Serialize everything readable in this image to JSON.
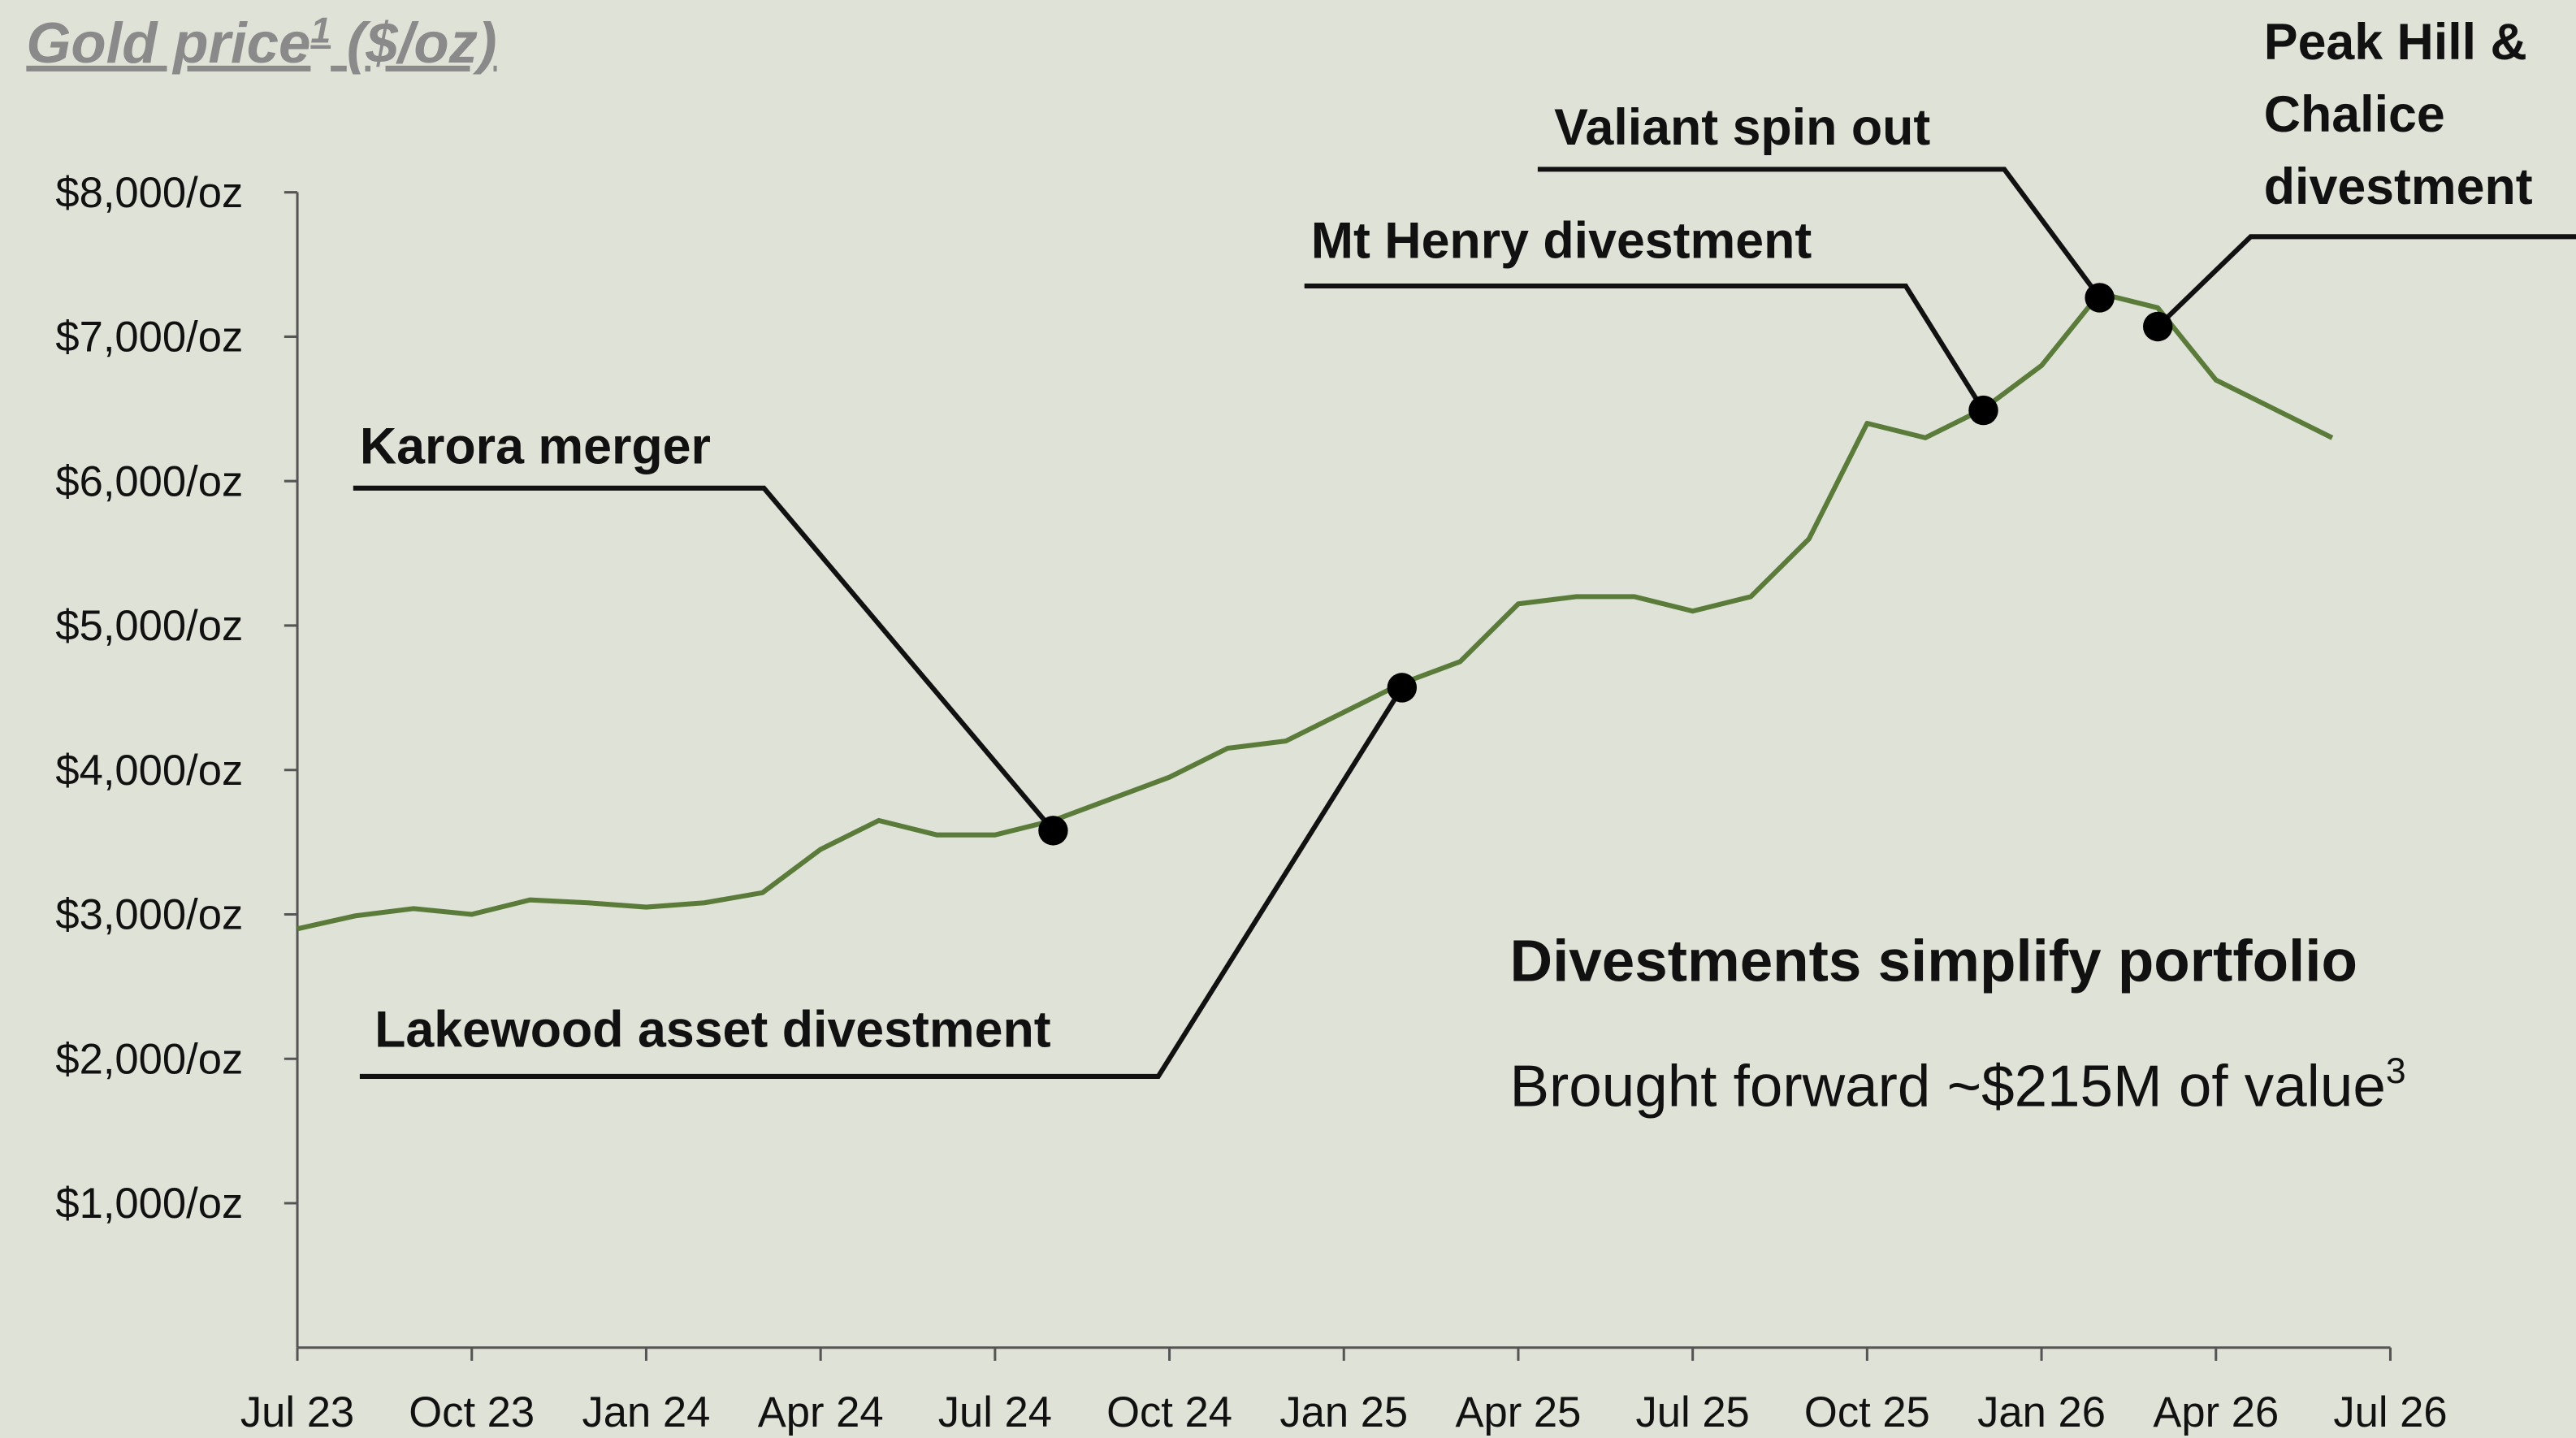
{
  "chart_data": {
    "type": "line",
    "title": "Gold price",
    "title_superscript": "1",
    "title_unit": "($/oz)",
    "x": [
      "2023-07",
      "2023-08",
      "2023-09",
      "2023-10",
      "2023-11",
      "2023-12",
      "2024-01",
      "2024-02",
      "2024-03",
      "2024-04",
      "2024-05",
      "2024-06",
      "2024-07",
      "2024-08",
      "2024-09",
      "2024-10",
      "2024-11",
      "2024-12",
      "2025-01",
      "2025-02",
      "2025-03",
      "2025-04",
      "2025-05",
      "2025-06",
      "2025-07",
      "2025-08",
      "2025-09",
      "2025-10",
      "2025-11",
      "2025-12",
      "2026-01",
      "2026-02",
      "2026-03",
      "2026-04",
      "2026-05",
      "2026-06"
    ],
    "series": [
      {
        "name": "Gold price",
        "color": "#5b7b3a",
        "values": [
          2900,
          2990,
          3040,
          3000,
          3100,
          3080,
          3050,
          3080,
          3150,
          3450,
          3650,
          3550,
          3550,
          3650,
          3800,
          3950,
          4150,
          4200,
          4400,
          4600,
          4750,
          5150,
          5200,
          5200,
          5100,
          5200,
          5600,
          6400,
          6300,
          6500,
          6800,
          7300,
          7200,
          6700,
          6500,
          6300
        ]
      }
    ],
    "xlim": [
      "2023-07",
      "2026-07"
    ],
    "xticks": [
      {
        "value": "2023-07",
        "label": "Jul 23"
      },
      {
        "value": "2023-10",
        "label": "Oct 23"
      },
      {
        "value": "2024-01",
        "label": "Jan 24"
      },
      {
        "value": "2024-04",
        "label": "Apr 24"
      },
      {
        "value": "2024-07",
        "label": "Jul 24"
      },
      {
        "value": "2024-10",
        "label": "Oct 24"
      },
      {
        "value": "2025-01",
        "label": "Jan 25"
      },
      {
        "value": "2025-04",
        "label": "Apr 25"
      },
      {
        "value": "2025-07",
        "label": "Jul 25"
      },
      {
        "value": "2025-10",
        "label": "Oct 25"
      },
      {
        "value": "2026-01",
        "label": "Jan 26"
      },
      {
        "value": "2026-04",
        "label": "Apr 26"
      },
      {
        "value": "2026-07",
        "label": "Jul 26"
      }
    ],
    "ylim": [
      0,
      8000
    ],
    "yticks": [
      {
        "value": 1000,
        "label": "$1,000/oz"
      },
      {
        "value": 2000,
        "label": "$2,000/oz"
      },
      {
        "value": 3000,
        "label": "$3,000/oz"
      },
      {
        "value": 4000,
        "label": "$4,000/oz"
      },
      {
        "value": 5000,
        "label": "$5,000/oz"
      },
      {
        "value": 6000,
        "label": "$6,000/oz"
      },
      {
        "value": 7000,
        "label": "$7,000/oz"
      },
      {
        "value": 8000,
        "label": "$8,000/oz"
      }
    ],
    "grid": false,
    "annotations": [
      {
        "label": [
          "Karora merger"
        ],
        "x": "2024-08",
        "y": 3580
      },
      {
        "label": [
          "Lakewood asset divestment"
        ],
        "x": "2025-02",
        "y": 4570
      },
      {
        "label": [
          "Mt Henry divestment"
        ],
        "x": "2025-12",
        "y": 6490
      },
      {
        "label": [
          "Valiant spin out"
        ],
        "x": "2026-02",
        "y": 7270
      },
      {
        "label": [
          "Peak Hill &",
          "Chalice",
          "divestment"
        ],
        "x": "2026-03",
        "y": 7070
      }
    ],
    "callout": {
      "heading": "Divestments simplify portfolio",
      "text": "Brought forward ~$215M of value",
      "superscript": "3"
    }
  }
}
